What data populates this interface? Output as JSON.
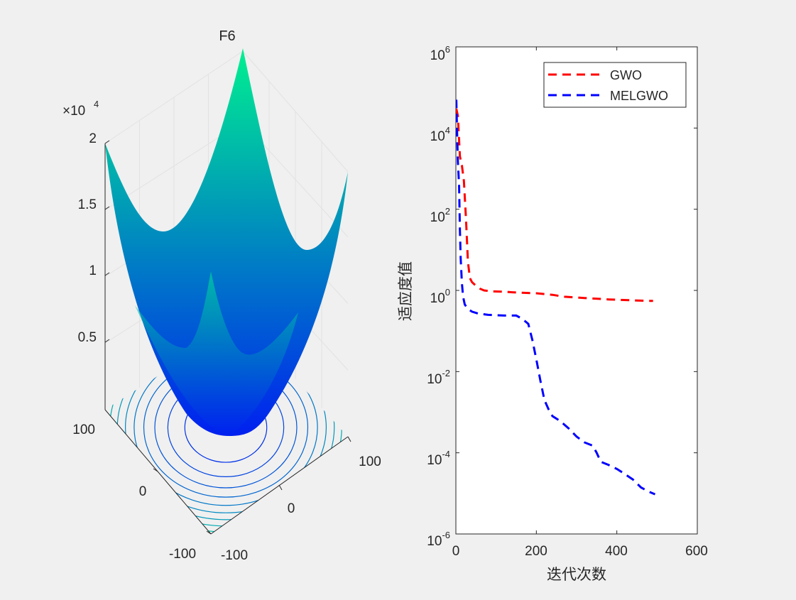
{
  "chart_data": [
    {
      "type": "surface3d",
      "title": "F6",
      "function": "sum of squares of (x + 0.5) over x1, x2",
      "x_range": [
        -100,
        100
      ],
      "y_range": [
        -100,
        100
      ],
      "z_range": [
        0,
        20000
      ],
      "x_tick_labels": [
        "-100",
        "0",
        "100"
      ],
      "y_tick_labels": [
        "-100",
        "0",
        "100"
      ],
      "z_tick_labels": [
        "0.5",
        "1",
        "1.5",
        "2"
      ],
      "z_exponent_prefix": "×10",
      "z_exponent_power": "4",
      "colormap": "winter",
      "colormap_colors": [
        "#0020f0",
        "#00f090"
      ],
      "contour_levels": 12
    },
    {
      "type": "line",
      "yscale": "log",
      "xlabel": "迭代次数",
      "ylabel": "适应度值",
      "xlim": [
        0,
        600
      ],
      "ylim": [
        1e-06,
        1000000.0
      ],
      "x_tick_labels": [
        "0",
        "200",
        "400",
        "600"
      ],
      "y_tick_bases": [
        "10",
        "10",
        "10",
        "10",
        "10",
        "10",
        "10"
      ],
      "y_tick_exponents": [
        "-6",
        "-4",
        "-2",
        "0",
        "2",
        "4",
        "6"
      ],
      "legend": {
        "location": "top-right",
        "entries": [
          "GWO",
          "MELGWO"
        ]
      },
      "series": [
        {
          "name": "GWO",
          "color": "#ff0000",
          "style": "dashed",
          "points": [
            [
              1,
              30000
            ],
            [
              5,
              20000
            ],
            [
              10,
              2000
            ],
            [
              15,
              1200
            ],
            [
              20,
              500
            ],
            [
              25,
              60
            ],
            [
              30,
              5
            ],
            [
              35,
              2
            ],
            [
              40,
              1.6
            ],
            [
              50,
              1.3
            ],
            [
              60,
              1.1
            ],
            [
              70,
              1.0
            ],
            [
              90,
              0.95
            ],
            [
              120,
              0.93
            ],
            [
              140,
              0.9
            ],
            [
              160,
              0.88
            ],
            [
              200,
              0.85
            ],
            [
              240,
              0.78
            ],
            [
              270,
              0.7
            ],
            [
              320,
              0.65
            ],
            [
              380,
              0.6
            ],
            [
              440,
              0.57
            ],
            [
              480,
              0.55
            ],
            [
              490,
              0.55
            ]
          ]
        },
        {
          "name": "MELGWO",
          "color": "#0000ff",
          "style": "dashed",
          "points": [
            [
              1,
              50000
            ],
            [
              3,
              8000
            ],
            [
              5,
              1500
            ],
            [
              8,
              400
            ],
            [
              10,
              30
            ],
            [
              12,
              6
            ],
            [
              15,
              1.5
            ],
            [
              18,
              0.7
            ],
            [
              22,
              0.45
            ],
            [
              30,
              0.35
            ],
            [
              40,
              0.3
            ],
            [
              55,
              0.27
            ],
            [
              80,
              0.25
            ],
            [
              120,
              0.24
            ],
            [
              150,
              0.24
            ],
            [
              165,
              0.2
            ],
            [
              180,
              0.15
            ],
            [
              190,
              0.06
            ],
            [
              200,
              0.02
            ],
            [
              210,
              0.006
            ],
            [
              220,
              0.002
            ],
            [
              230,
              0.0012
            ],
            [
              240,
              0.0008
            ],
            [
              260,
              0.0006
            ],
            [
              280,
              0.0004
            ],
            [
              300,
              0.00025
            ],
            [
              320,
              0.00018
            ],
            [
              340,
              0.00015
            ],
            [
              350,
              0.0001
            ],
            [
              360,
              6e-05
            ],
            [
              380,
              5e-05
            ],
            [
              400,
              4e-05
            ],
            [
              420,
              3e-05
            ],
            [
              440,
              2.2e-05
            ],
            [
              460,
              1.4e-05
            ],
            [
              480,
              1.1e-05
            ],
            [
              495,
              9.5e-06
            ]
          ]
        }
      ]
    }
  ]
}
